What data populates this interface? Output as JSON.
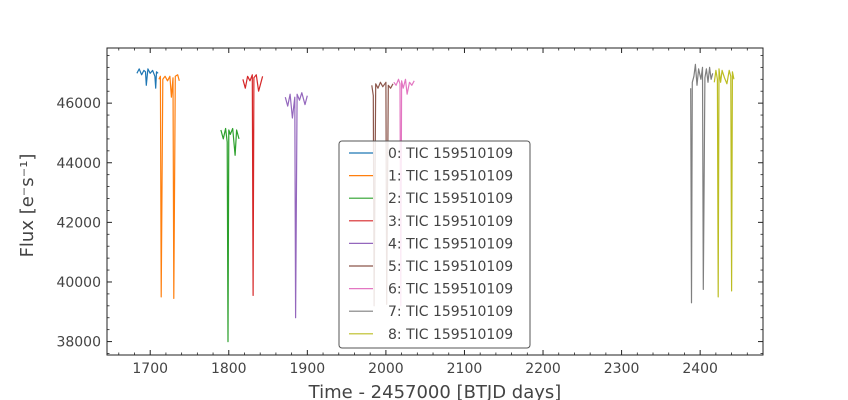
{
  "chart_data": {
    "type": "line",
    "xlabel": "Time - 2457000 [BTJD days]",
    "ylabel": "Flux [e⁻s⁻¹]",
    "xlim": [
      1645,
      2480
    ],
    "ylim": [
      37550,
      47850
    ],
    "xticks": [
      1700,
      1800,
      1900,
      2000,
      2100,
      2200,
      2300,
      2400
    ],
    "yticks": [
      38000,
      40000,
      42000,
      44000,
      46000
    ],
    "grid": false,
    "legend_position": "center",
    "series": [
      {
        "name": "0: TIC 159510109",
        "color": "#1f77b4",
        "x": [
          1683,
          1686,
          1689,
          1692,
          1694,
          1695,
          1697,
          1700,
          1703,
          1706,
          1707,
          1708,
          1710
        ],
        "y": [
          47000,
          47150,
          46950,
          47100,
          47050,
          46600,
          47150,
          47000,
          47100,
          46900,
          46500,
          47050,
          47000
        ]
      },
      {
        "name": "1: TIC 159510109",
        "color": "#ff7f0e",
        "x": [
          1711,
          1713,
          1714,
          1716,
          1719,
          1722,
          1725,
          1727,
          1729,
          1730,
          1732,
          1735,
          1737
        ],
        "y": [
          46800,
          46900,
          39500,
          46800,
          46900,
          46750,
          46900,
          46200,
          46850,
          39450,
          46900,
          46950,
          46750
        ]
      },
      {
        "name": "2: TIC 159510109",
        "color": "#2ca02c",
        "x": [
          1790,
          1793,
          1796,
          1798,
          1799,
          1800,
          1802,
          1805,
          1808,
          1810,
          1813
        ],
        "y": [
          45100,
          44800,
          45150,
          44700,
          38000,
          45100,
          44950,
          45150,
          44250,
          45100,
          44800
        ]
      },
      {
        "name": "3: TIC 159510109",
        "color": "#d62728",
        "x": [
          1818,
          1821,
          1824,
          1827,
          1830,
          1831,
          1832,
          1835,
          1838,
          1840,
          1843
        ],
        "y": [
          46800,
          46500,
          46900,
          46750,
          46950,
          39550,
          46850,
          46950,
          46400,
          46600,
          46900
        ]
      },
      {
        "name": "4: TIC 159510109",
        "color": "#9467bd",
        "x": [
          1872,
          1875,
          1878,
          1881,
          1884,
          1885,
          1887,
          1890,
          1893,
          1897,
          1900
        ],
        "y": [
          46200,
          45900,
          46300,
          45500,
          46200,
          38800,
          46300,
          46100,
          46350,
          45950,
          46250
        ]
      },
      {
        "name": "5: TIC 159510109",
        "color": "#8c564b",
        "x": [
          1982,
          1984,
          1985,
          1987,
          1990,
          1993,
          1996,
          2000,
          2001,
          2003,
          2006,
          2009
        ],
        "y": [
          46600,
          46250,
          39200,
          46650,
          46500,
          46700,
          46550,
          46700,
          39250,
          46600,
          46500,
          46650
        ]
      },
      {
        "name": "6: TIC 159510109",
        "color": "#e377c2",
        "x": [
          2010,
          2013,
          2016,
          2018,
          2019,
          2020,
          2022,
          2025,
          2027,
          2030,
          2033,
          2036
        ],
        "y": [
          46700,
          46600,
          46800,
          46650,
          39200,
          46750,
          46500,
          46800,
          46300,
          46700,
          46600,
          46750
        ]
      },
      {
        "name": "7: TIC 159510109",
        "color": "#7f7f7f",
        "x": [
          2388,
          2389,
          2390,
          2392,
          2394,
          2396,
          2398,
          2401,
          2403,
          2404,
          2406,
          2408,
          2410,
          2412,
          2414,
          2416
        ],
        "y": [
          46500,
          39300,
          46700,
          46900,
          47300,
          46600,
          47150,
          46800,
          47200,
          39750,
          46850,
          47150,
          46700,
          47200,
          46800,
          47000
        ]
      },
      {
        "name": "8: TIC 159510109",
        "color": "#bcbd22",
        "x": [
          2418,
          2420,
          2422,
          2423,
          2424,
          2426,
          2428,
          2431,
          2434,
          2437,
          2439,
          2440,
          2441,
          2443
        ],
        "y": [
          46700,
          47100,
          46800,
          39500,
          47150,
          46700,
          47100,
          46850,
          46650,
          47100,
          46900,
          39700,
          47050,
          46800
        ]
      }
    ]
  }
}
